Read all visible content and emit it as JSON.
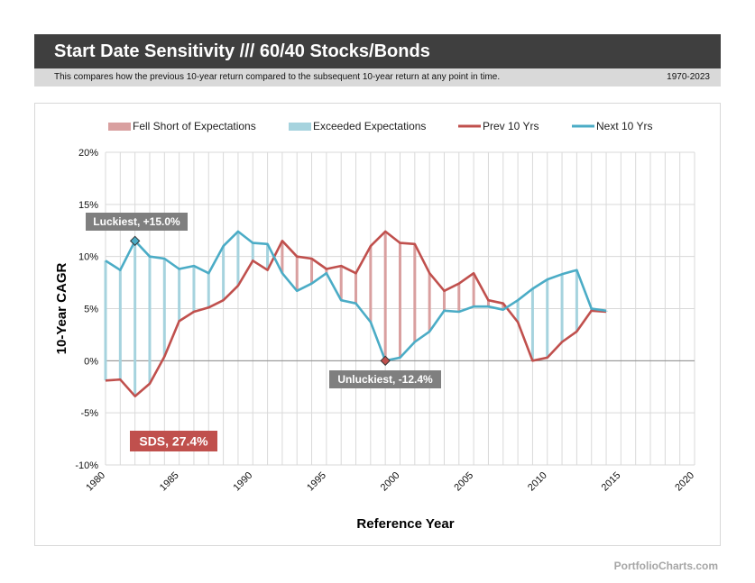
{
  "header": {
    "title": "Start Date Sensitivity /// 60/40 Stocks/Bonds",
    "subtitle": "This compares how the previous 10-year return compared to the subsequent 10-year return at any point in time.",
    "range": "1970-2023"
  },
  "footer": {
    "source": "PortfolioCharts.com"
  },
  "chart_data": {
    "type": "line",
    "xlabel": "Reference Year",
    "ylabel": "10-Year CAGR",
    "xlim": [
      1980,
      2020
    ],
    "ylim": [
      -10,
      20
    ],
    "xticks": [
      1980,
      1985,
      1990,
      1995,
      2000,
      2005,
      2010,
      2015,
      2020
    ],
    "xtick_labels": [
      "1980",
      "1985",
      "1990",
      "1995",
      "2000",
      "2005",
      "2010",
      "2015",
      "2020"
    ],
    "yticks": [
      -10,
      -5,
      0,
      5,
      10,
      15,
      20
    ],
    "ytick_labels": [
      "-10%",
      "-5%",
      "0%",
      "5%",
      "10%",
      "15%",
      "20%"
    ],
    "grid": true,
    "legend_position": "top",
    "legend": [
      {
        "label": "Fell Short of Expectations",
        "kind": "band",
        "color": "#d9a0a0"
      },
      {
        "label": "Exceeded Expectations",
        "kind": "band",
        "color": "#a6d3de"
      },
      {
        "label": "Prev 10 Yrs",
        "kind": "line",
        "color": "#c0504d"
      },
      {
        "label": "Next 10 Yrs",
        "kind": "line",
        "color": "#4bacc6"
      }
    ],
    "x": [
      1980,
      1981,
      1982,
      1983,
      1984,
      1985,
      1986,
      1987,
      1988,
      1989,
      1990,
      1991,
      1992,
      1993,
      1994,
      1995,
      1996,
      1997,
      1998,
      1999,
      2000,
      2001,
      2002,
      2003,
      2004,
      2005,
      2006,
      2007,
      2008,
      2009,
      2010,
      2011,
      2012,
      2013,
      2014
    ],
    "series": [
      {
        "name": "Prev 10 Yrs",
        "color": "#c0504d",
        "values": [
          -1.9,
          -1.8,
          -3.4,
          -2.2,
          0.4,
          3.8,
          4.7,
          5.1,
          5.8,
          7.2,
          9.6,
          8.7,
          11.5,
          10.0,
          9.8,
          8.8,
          9.1,
          8.4,
          11.0,
          12.4,
          11.3,
          11.2,
          8.4,
          6.7,
          7.4,
          8.4,
          5.8,
          5.5,
          3.7,
          0.0,
          0.3,
          1.8,
          2.8,
          4.8,
          4.7
        ]
      },
      {
        "name": "Next 10 Yrs",
        "color": "#4bacc6",
        "values": [
          9.6,
          8.7,
          11.5,
          10.0,
          9.8,
          8.8,
          9.1,
          8.4,
          11.0,
          12.4,
          11.3,
          11.2,
          8.4,
          6.7,
          7.4,
          8.4,
          5.8,
          5.5,
          3.7,
          0.0,
          0.3,
          1.8,
          2.8,
          4.8,
          4.7,
          5.2,
          5.2,
          4.9,
          5.8,
          6.9,
          7.8,
          8.3,
          8.7,
          5.0,
          4.8
        ]
      }
    ],
    "annotations": [
      {
        "text": "Luckiest, +15.0%",
        "x": 1982,
        "y": 11.5,
        "style": "label-above",
        "marker_color": "#4bacc6"
      },
      {
        "text": "Unluckiest, -12.4%",
        "x": 1999,
        "y": 0.0,
        "style": "label-below",
        "marker_color": "#c0504d"
      },
      {
        "text": "SDS, 27.4%",
        "style": "badge",
        "color": "#c0504d"
      }
    ]
  }
}
